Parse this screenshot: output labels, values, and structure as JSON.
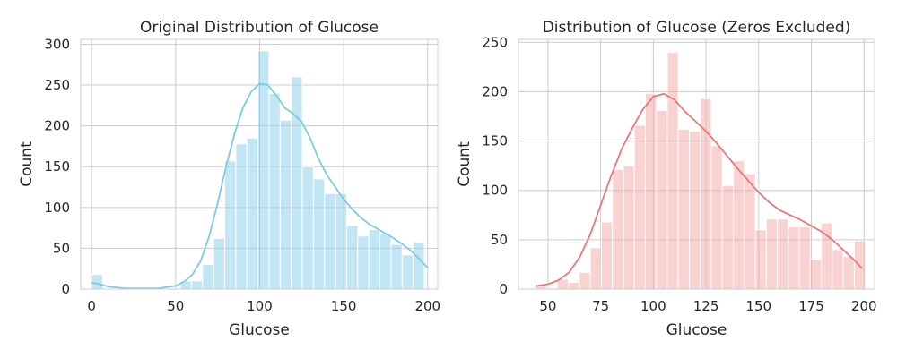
{
  "chart_data": [
    {
      "type": "bar",
      "title": "Original Distribution of Glucose",
      "xlabel": "Glucose",
      "ylabel": "Count",
      "xlim": [
        -6.5,
        206
      ],
      "ylim": [
        0,
        306
      ],
      "xticks": [
        0,
        50,
        100,
        150,
        200
      ],
      "yticks": [
        0,
        50,
        100,
        150,
        200,
        250,
        300
      ],
      "bin_width": 6.6,
      "bin_starts": [
        0,
        52.8,
        59.4,
        66,
        72.6,
        79.2,
        85.8,
        92.4,
        99,
        105.6,
        112.2,
        118.8,
        125.4,
        132,
        138.6,
        145.2,
        151.8,
        158.4,
        165,
        171.6,
        178.2,
        184.8,
        191.4
      ],
      "values": [
        18,
        10,
        10,
        30,
        62,
        157,
        178,
        185,
        292,
        240,
        207,
        260,
        150,
        135,
        117,
        117,
        78,
        65,
        73,
        68,
        55,
        42,
        57
      ],
      "kde": [
        [
          0,
          8
        ],
        [
          5,
          6
        ],
        [
          10,
          3
        ],
        [
          20,
          1
        ],
        [
          30,
          1
        ],
        [
          40,
          1
        ],
        [
          50,
          4
        ],
        [
          55,
          9
        ],
        [
          60,
          18
        ],
        [
          65,
          35
        ],
        [
          70,
          65
        ],
        [
          75,
          105
        ],
        [
          80,
          150
        ],
        [
          85,
          190
        ],
        [
          90,
          222
        ],
        [
          95,
          242
        ],
        [
          100,
          252
        ],
        [
          105,
          250
        ],
        [
          110,
          237
        ],
        [
          115,
          222
        ],
        [
          120,
          215
        ],
        [
          125,
          205
        ],
        [
          130,
          185
        ],
        [
          135,
          160
        ],
        [
          140,
          140
        ],
        [
          145,
          125
        ],
        [
          150,
          110
        ],
        [
          155,
          98
        ],
        [
          160,
          88
        ],
        [
          165,
          80
        ],
        [
          170,
          74
        ],
        [
          175,
          68
        ],
        [
          180,
          62
        ],
        [
          185,
          55
        ],
        [
          190,
          47
        ],
        [
          195,
          37
        ],
        [
          200,
          26
        ]
      ],
      "bar_color": "#87ceeb",
      "kde_color": "#7ccbe3"
    },
    {
      "type": "bar",
      "title": "Distribution of Glucose (Zeros Excluded)",
      "xlabel": "Glucose",
      "ylabel": "Count",
      "xlim": [
        36,
        205
      ],
      "ylim": [
        0,
        253
      ],
      "xticks": [
        50,
        75,
        100,
        125,
        150,
        175,
        200
      ],
      "yticks": [
        0,
        50,
        100,
        150,
        200,
        250
      ],
      "bin_width": 5.22,
      "bin_starts": [
        44,
        49.22,
        54.44,
        59.66,
        64.88,
        70.1,
        75.32,
        80.54,
        85.76,
        90.98,
        96.2,
        101.42,
        106.64,
        111.86,
        117.08,
        122.3,
        127.52,
        132.74,
        137.96,
        143.18,
        148.4,
        153.62,
        158.84,
        164.06,
        169.28,
        174.5,
        179.72,
        184.94,
        190.16,
        195.38
      ],
      "values": [
        3,
        1,
        10,
        7,
        17,
        42,
        68,
        121,
        125,
        166,
        198,
        181,
        240,
        162,
        160,
        193,
        145,
        105,
        130,
        117,
        60,
        71,
        71,
        63,
        63,
        30,
        67,
        40,
        33,
        49
      ],
      "kde": [
        [
          44,
          3
        ],
        [
          50,
          5
        ],
        [
          55,
          9
        ],
        [
          60,
          17
        ],
        [
          65,
          32
        ],
        [
          70,
          55
        ],
        [
          75,
          85
        ],
        [
          80,
          115
        ],
        [
          85,
          142
        ],
        [
          90,
          163
        ],
        [
          95,
          182
        ],
        [
          100,
          195
        ],
        [
          105,
          198
        ],
        [
          110,
          192
        ],
        [
          115,
          180
        ],
        [
          120,
          170
        ],
        [
          125,
          160
        ],
        [
          130,
          148
        ],
        [
          135,
          135
        ],
        [
          140,
          122
        ],
        [
          145,
          110
        ],
        [
          150,
          98
        ],
        [
          155,
          88
        ],
        [
          160,
          80
        ],
        [
          165,
          75
        ],
        [
          170,
          70
        ],
        [
          175,
          64
        ],
        [
          180,
          58
        ],
        [
          185,
          50
        ],
        [
          190,
          40
        ],
        [
          195,
          30
        ],
        [
          199,
          21
        ]
      ],
      "bar_color": "#f4a6a6",
      "kde_color": "#e87878"
    }
  ]
}
